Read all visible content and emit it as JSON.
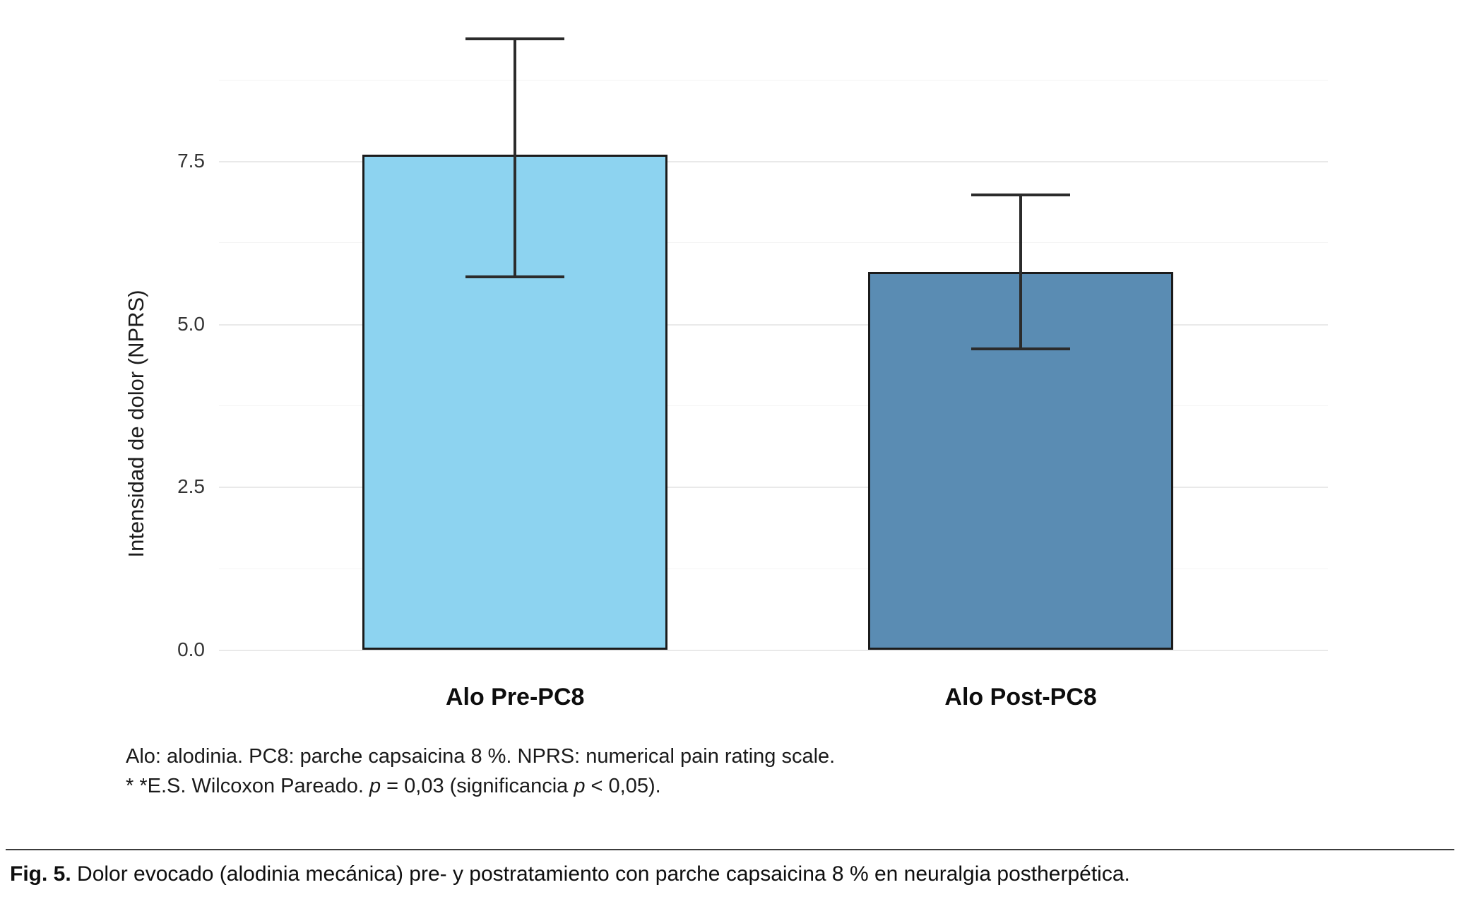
{
  "chart_data": {
    "type": "bar",
    "categories": [
      "Alo Pre-PC8",
      "Alo Post-PC8"
    ],
    "values": [
      7.6,
      5.8
    ],
    "error_upper": [
      9.4,
      7.0
    ],
    "error_lower": [
      5.7,
      4.6
    ],
    "title": "",
    "xlabel": "",
    "ylabel": "Intensidad de dolor (NPRS)",
    "ylim": [
      0,
      9.8
    ],
    "yticks": [
      0,
      2.5,
      5,
      7.5
    ],
    "ytick_labels": [
      "0.0",
      "2.5",
      "5.0",
      "7.5"
    ],
    "yticks_minor": [
      1.25,
      3.75,
      6.25,
      8.75
    ],
    "bar_colors": [
      "#8dd3f0",
      "#5a8cb3"
    ],
    "bar_border_color": "#1b1b1b",
    "error_color": "#2b2b2b",
    "grid": true,
    "legend": "none"
  },
  "footnotes": {
    "line1": "Alo: alodinia. PC8: parche capsaicina 8 %. NPRS: numerical pain rating scale.",
    "line2_parts": [
      "* *E.S. Wilcoxon Pareado. ",
      "p",
      " = 0,03 (significancia ",
      "p",
      " < 0,05)."
    ]
  },
  "caption": {
    "label": "Fig. 5.",
    "text": " Dolor evocado (alodinia mecánica)  pre- y postratamiento con parche capsaicina 8 % en neuralgia postherpética."
  }
}
